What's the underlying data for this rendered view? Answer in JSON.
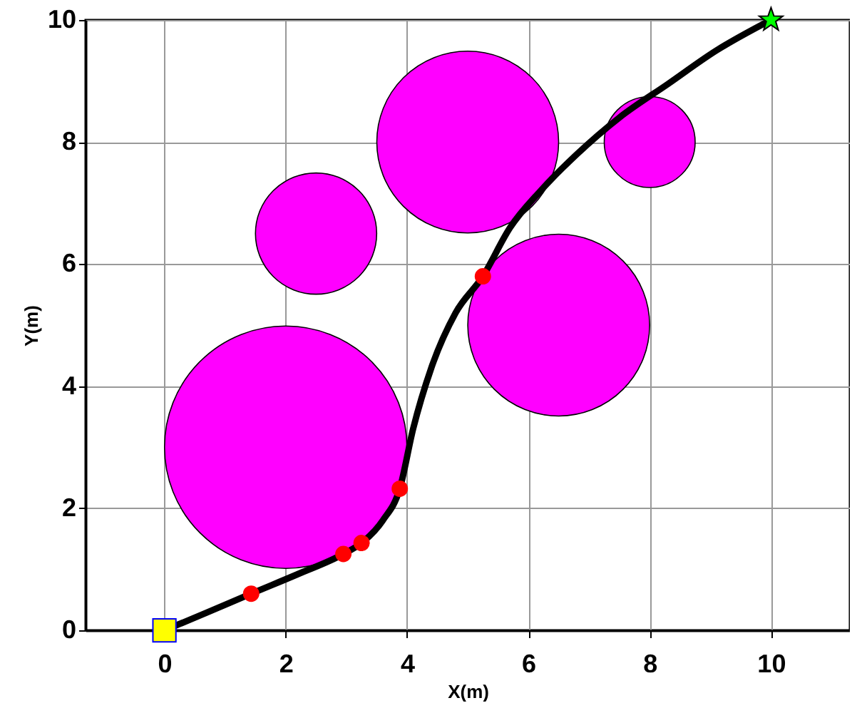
{
  "chart_data": {
    "type": "scatter",
    "xlabel": "X(m)",
    "ylabel": "Y(m)",
    "xlim": [
      -1.3,
      11.3
    ],
    "ylim": [
      0,
      10
    ],
    "xticks": [
      0,
      2,
      4,
      6,
      8,
      10
    ],
    "yticks": [
      0,
      2,
      4,
      6,
      8,
      10
    ],
    "grid": true,
    "series": [
      {
        "type": "bubble",
        "color": "#ff00ff",
        "x": [
          2,
          2.5,
          5,
          6.5,
          8
        ],
        "values": [
          3,
          6.5,
          8,
          5,
          8
        ],
        "sizes": [
          1,
          0.25,
          0.5625,
          0.5625,
          0.140625
        ]
      },
      {
        "type": "line",
        "color": "#000000",
        "line_style": "solid",
        "marker": "none",
        "x": [
          0,
          0.7,
          1.43,
          2.2,
          2.95,
          3.25,
          3.6,
          3.88,
          4.1,
          4.4,
          4.8,
          5.25,
          5.7,
          6.2,
          6.8,
          7.5,
          8.3,
          9.1,
          10
        ],
        "values": [
          0,
          0.29,
          0.6,
          0.92,
          1.25,
          1.43,
          1.8,
          2.32,
          3.3,
          4.3,
          5.2,
          5.8,
          6.6,
          7.2,
          7.8,
          8.4,
          8.95,
          9.5,
          10
        ]
      },
      {
        "type": "scatter",
        "color": "#ff0000",
        "marker": "circle",
        "x": [
          1.43,
          2.95,
          3.25,
          3.88,
          5.25
        ],
        "values": [
          0.6,
          1.25,
          1.43,
          2.32,
          5.8
        ]
      },
      {
        "type": "scatter",
        "color": "#ffff00",
        "marker": "square",
        "x": [
          0
        ],
        "values": [
          0
        ]
      },
      {
        "type": "scatter",
        "color": "#00ff00",
        "marker": "star",
        "x": [
          10
        ],
        "values": [
          10
        ]
      }
    ]
  }
}
